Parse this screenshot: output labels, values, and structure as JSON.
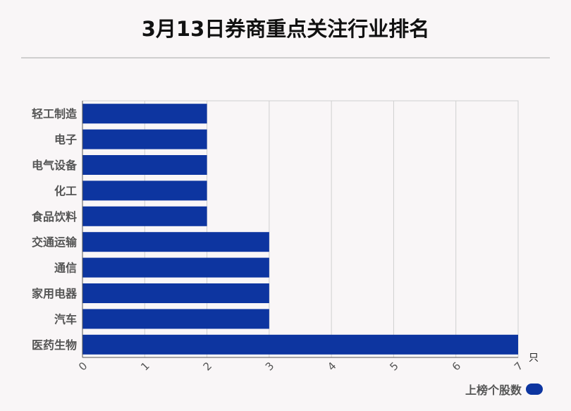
{
  "title": "3月13日券商重点关注行业排名",
  "chart_data": {
    "type": "bar",
    "orientation": "horizontal",
    "categories": [
      "轻工制造",
      "电子",
      "电气设备",
      "化工",
      "食品饮料",
      "交通运输",
      "通信",
      "家用电器",
      "汽车",
      "医药生物"
    ],
    "series": [
      {
        "name": "上榜个股数",
        "values": [
          2,
          2,
          2,
          2,
          2,
          3,
          3,
          3,
          3,
          7
        ]
      }
    ],
    "x_ticks": [
      "0",
      "1",
      "2",
      "3",
      "4",
      "5",
      "6",
      "7"
    ],
    "xlim": [
      0,
      7
    ],
    "x_unit": "只",
    "grid": true,
    "legend_position": "bottom-right",
    "bar_color": "#0d35a0"
  }
}
